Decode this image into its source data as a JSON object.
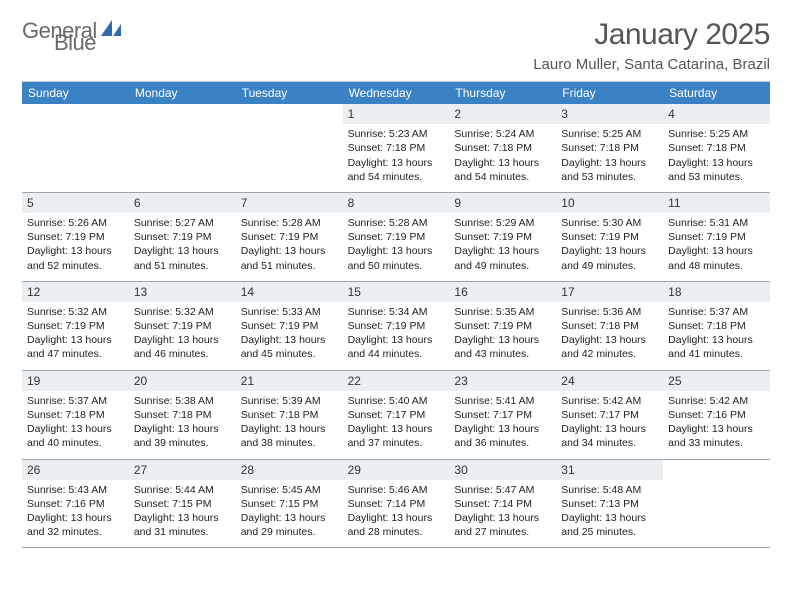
{
  "brand": {
    "word1": "General",
    "word2": "Blue"
  },
  "title": "January 2025",
  "location": "Lauro Muller, Santa Catarina, Brazil",
  "colors": {
    "header_bg": "#3b82c4",
    "daynum_bg": "#eceff2",
    "week_border": "#9aa5b0",
    "logo_gray": "#6a6a6a",
    "logo_blue": "#3b7fc4"
  },
  "day_labels": [
    "Sunday",
    "Monday",
    "Tuesday",
    "Wednesday",
    "Thursday",
    "Friday",
    "Saturday"
  ],
  "weeks": [
    [
      null,
      null,
      null,
      {
        "n": "1",
        "sunrise": "5:23 AM",
        "sunset": "7:18 PM",
        "daylight": "13 hours and 54 minutes."
      },
      {
        "n": "2",
        "sunrise": "5:24 AM",
        "sunset": "7:18 PM",
        "daylight": "13 hours and 54 minutes."
      },
      {
        "n": "3",
        "sunrise": "5:25 AM",
        "sunset": "7:18 PM",
        "daylight": "13 hours and 53 minutes."
      },
      {
        "n": "4",
        "sunrise": "5:25 AM",
        "sunset": "7:18 PM",
        "daylight": "13 hours and 53 minutes."
      }
    ],
    [
      {
        "n": "5",
        "sunrise": "5:26 AM",
        "sunset": "7:19 PM",
        "daylight": "13 hours and 52 minutes."
      },
      {
        "n": "6",
        "sunrise": "5:27 AM",
        "sunset": "7:19 PM",
        "daylight": "13 hours and 51 minutes."
      },
      {
        "n": "7",
        "sunrise": "5:28 AM",
        "sunset": "7:19 PM",
        "daylight": "13 hours and 51 minutes."
      },
      {
        "n": "8",
        "sunrise": "5:28 AM",
        "sunset": "7:19 PM",
        "daylight": "13 hours and 50 minutes."
      },
      {
        "n": "9",
        "sunrise": "5:29 AM",
        "sunset": "7:19 PM",
        "daylight": "13 hours and 49 minutes."
      },
      {
        "n": "10",
        "sunrise": "5:30 AM",
        "sunset": "7:19 PM",
        "daylight": "13 hours and 49 minutes."
      },
      {
        "n": "11",
        "sunrise": "5:31 AM",
        "sunset": "7:19 PM",
        "daylight": "13 hours and 48 minutes."
      }
    ],
    [
      {
        "n": "12",
        "sunrise": "5:32 AM",
        "sunset": "7:19 PM",
        "daylight": "13 hours and 47 minutes."
      },
      {
        "n": "13",
        "sunrise": "5:32 AM",
        "sunset": "7:19 PM",
        "daylight": "13 hours and 46 minutes."
      },
      {
        "n": "14",
        "sunrise": "5:33 AM",
        "sunset": "7:19 PM",
        "daylight": "13 hours and 45 minutes."
      },
      {
        "n": "15",
        "sunrise": "5:34 AM",
        "sunset": "7:19 PM",
        "daylight": "13 hours and 44 minutes."
      },
      {
        "n": "16",
        "sunrise": "5:35 AM",
        "sunset": "7:19 PM",
        "daylight": "13 hours and 43 minutes."
      },
      {
        "n": "17",
        "sunrise": "5:36 AM",
        "sunset": "7:18 PM",
        "daylight": "13 hours and 42 minutes."
      },
      {
        "n": "18",
        "sunrise": "5:37 AM",
        "sunset": "7:18 PM",
        "daylight": "13 hours and 41 minutes."
      }
    ],
    [
      {
        "n": "19",
        "sunrise": "5:37 AM",
        "sunset": "7:18 PM",
        "daylight": "13 hours and 40 minutes."
      },
      {
        "n": "20",
        "sunrise": "5:38 AM",
        "sunset": "7:18 PM",
        "daylight": "13 hours and 39 minutes."
      },
      {
        "n": "21",
        "sunrise": "5:39 AM",
        "sunset": "7:18 PM",
        "daylight": "13 hours and 38 minutes."
      },
      {
        "n": "22",
        "sunrise": "5:40 AM",
        "sunset": "7:17 PM",
        "daylight": "13 hours and 37 minutes."
      },
      {
        "n": "23",
        "sunrise": "5:41 AM",
        "sunset": "7:17 PM",
        "daylight": "13 hours and 36 minutes."
      },
      {
        "n": "24",
        "sunrise": "5:42 AM",
        "sunset": "7:17 PM",
        "daylight": "13 hours and 34 minutes."
      },
      {
        "n": "25",
        "sunrise": "5:42 AM",
        "sunset": "7:16 PM",
        "daylight": "13 hours and 33 minutes."
      }
    ],
    [
      {
        "n": "26",
        "sunrise": "5:43 AM",
        "sunset": "7:16 PM",
        "daylight": "13 hours and 32 minutes."
      },
      {
        "n": "27",
        "sunrise": "5:44 AM",
        "sunset": "7:15 PM",
        "daylight": "13 hours and 31 minutes."
      },
      {
        "n": "28",
        "sunrise": "5:45 AM",
        "sunset": "7:15 PM",
        "daylight": "13 hours and 29 minutes."
      },
      {
        "n": "29",
        "sunrise": "5:46 AM",
        "sunset": "7:14 PM",
        "daylight": "13 hours and 28 minutes."
      },
      {
        "n": "30",
        "sunrise": "5:47 AM",
        "sunset": "7:14 PM",
        "daylight": "13 hours and 27 minutes."
      },
      {
        "n": "31",
        "sunrise": "5:48 AM",
        "sunset": "7:13 PM",
        "daylight": "13 hours and 25 minutes."
      },
      null
    ]
  ],
  "labels": {
    "sunrise": "Sunrise:",
    "sunset": "Sunset:",
    "daylight": "Daylight:"
  }
}
